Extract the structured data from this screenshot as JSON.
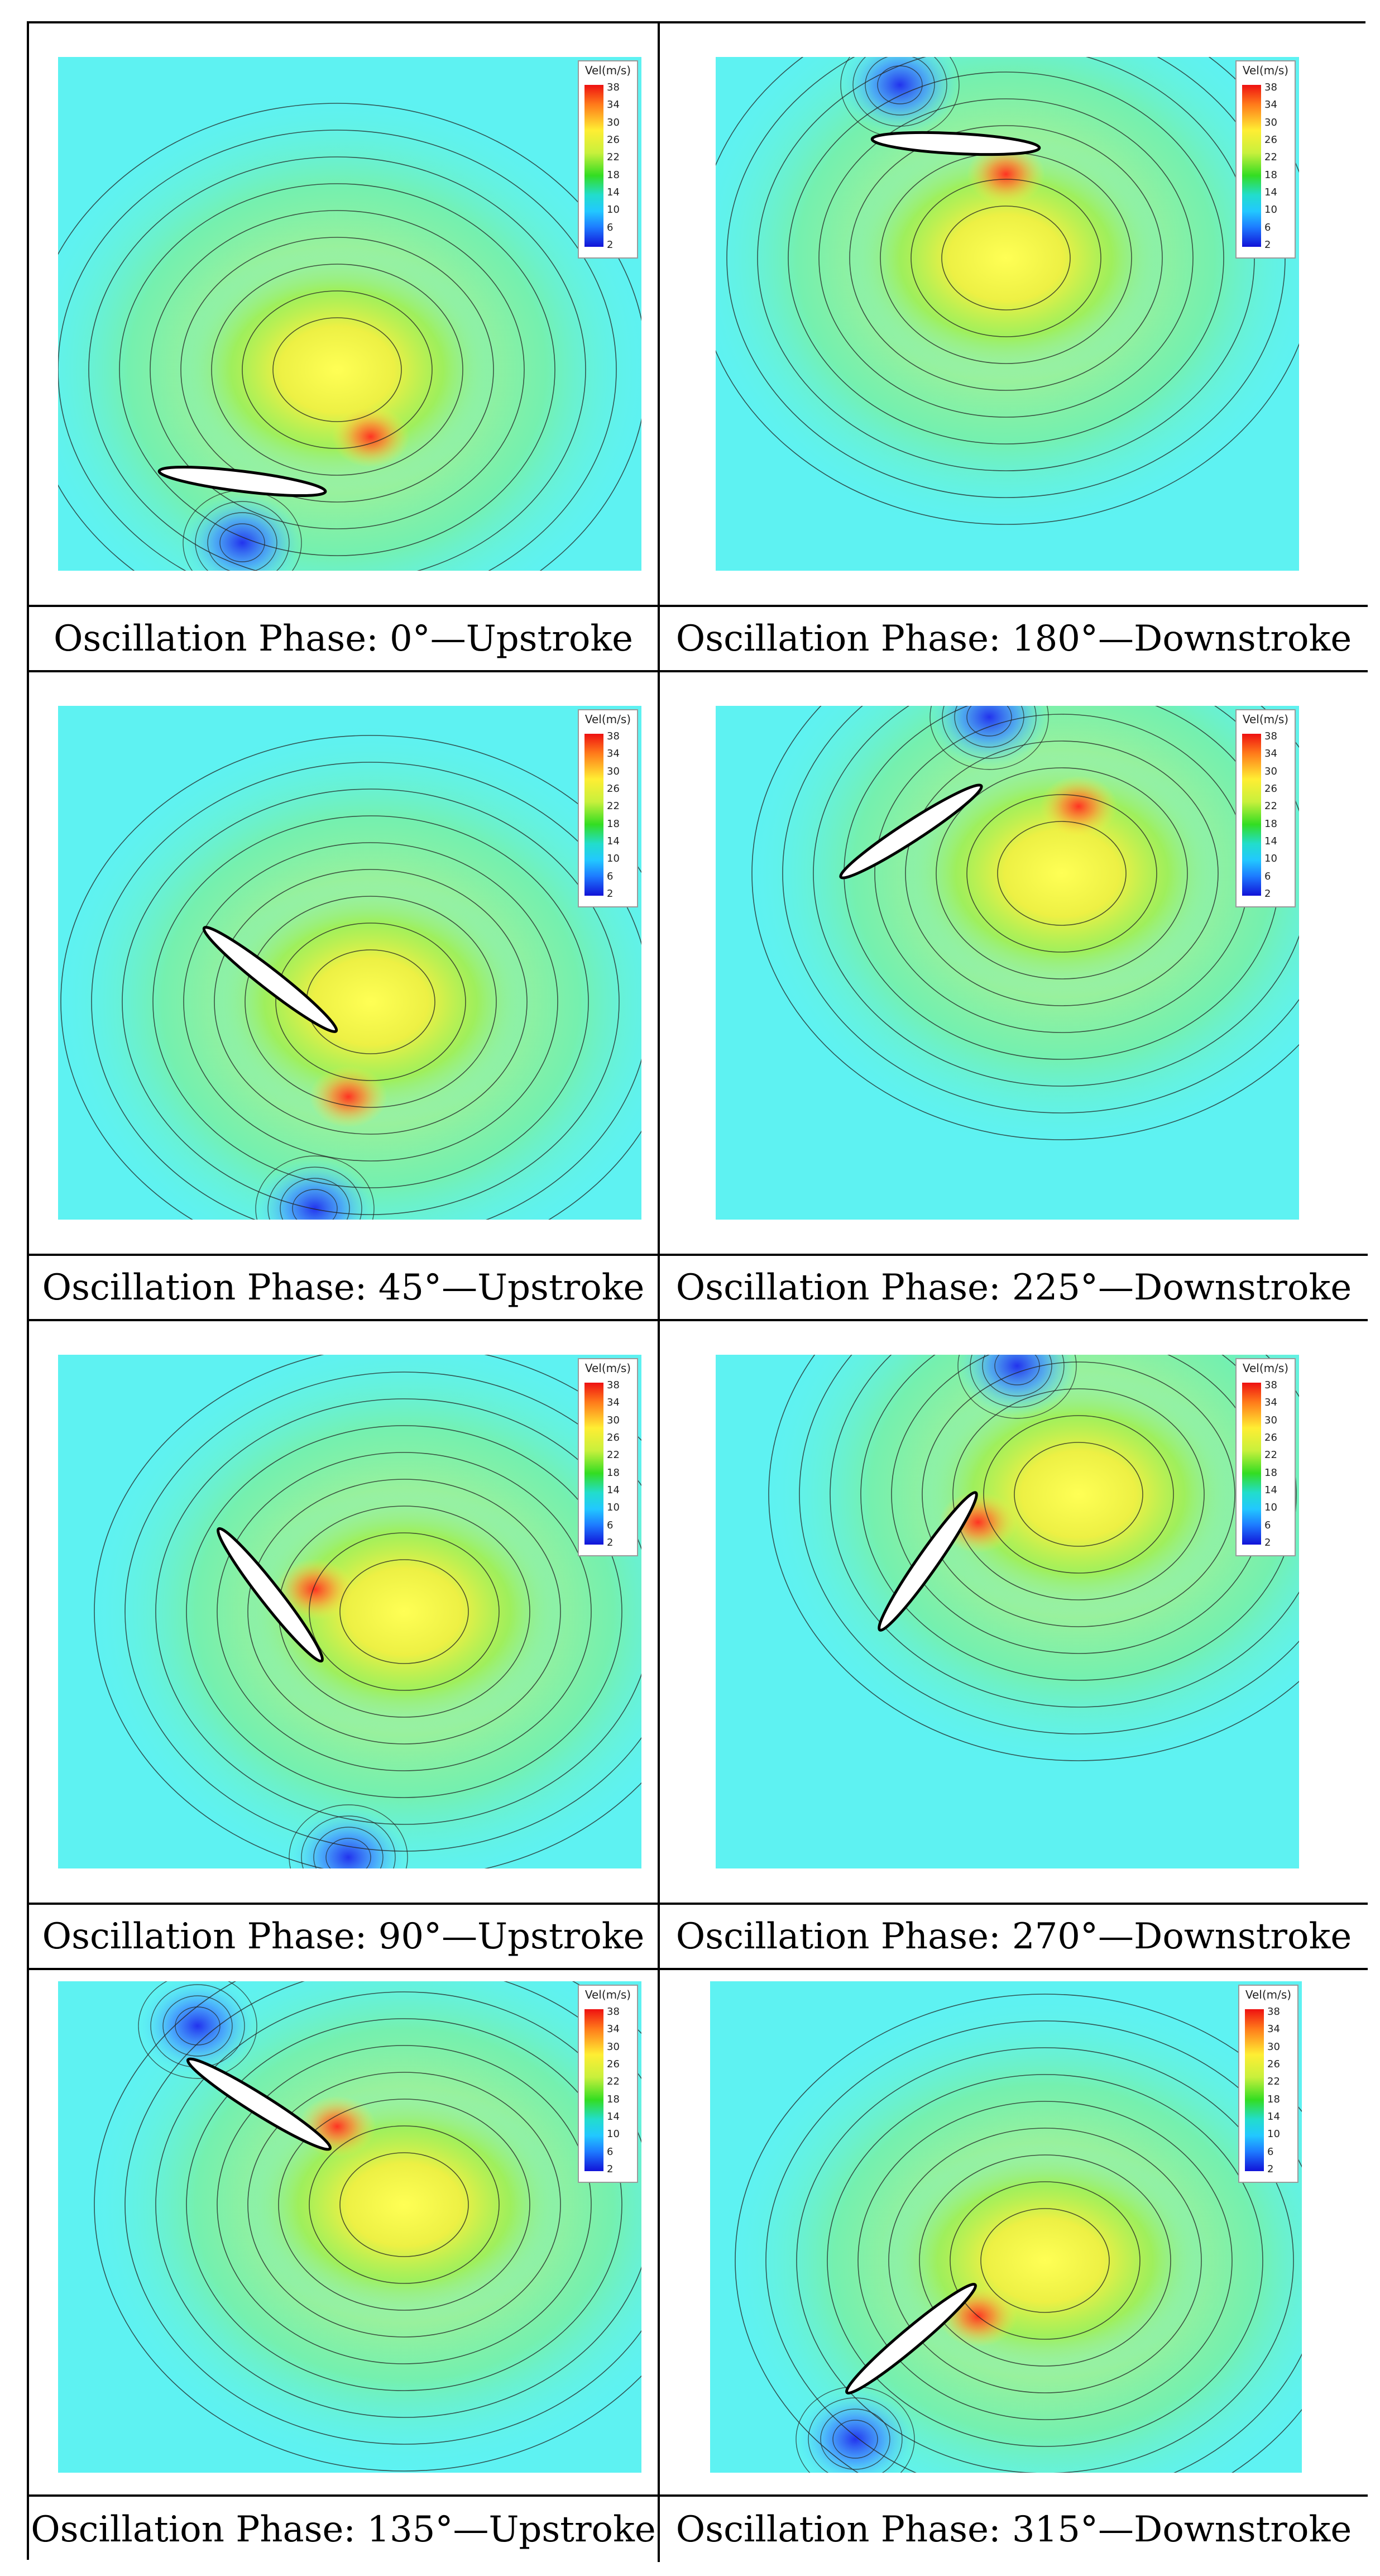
{
  "legend": {
    "title": "Vel(m/s)",
    "ticks": [
      "38",
      "34",
      "30",
      "26",
      "22",
      "18",
      "14",
      "10",
      "6",
      "2"
    ]
  },
  "panels": [
    {
      "caption": "Oscillation Phase: 0°—Upstroke",
      "angle": 7
    },
    {
      "caption": "Oscillation Phase: 180°—Downstroke",
      "angle": 3
    },
    {
      "caption": "Oscillation Phase: 45°—Upstroke",
      "angle": 38
    },
    {
      "caption": "Oscillation Phase: 225°—Downstroke",
      "angle": -33
    },
    {
      "caption": "Oscillation Phase: 90°—Upstroke",
      "angle": 52
    },
    {
      "caption": "Oscillation Phase: 270°—Downstroke",
      "angle": -55
    },
    {
      "caption": "Oscillation Phase: 135°—Upstroke",
      "angle": 32
    },
    {
      "caption": "Oscillation Phase: 315°—Downstroke",
      "angle": -40
    }
  ]
}
